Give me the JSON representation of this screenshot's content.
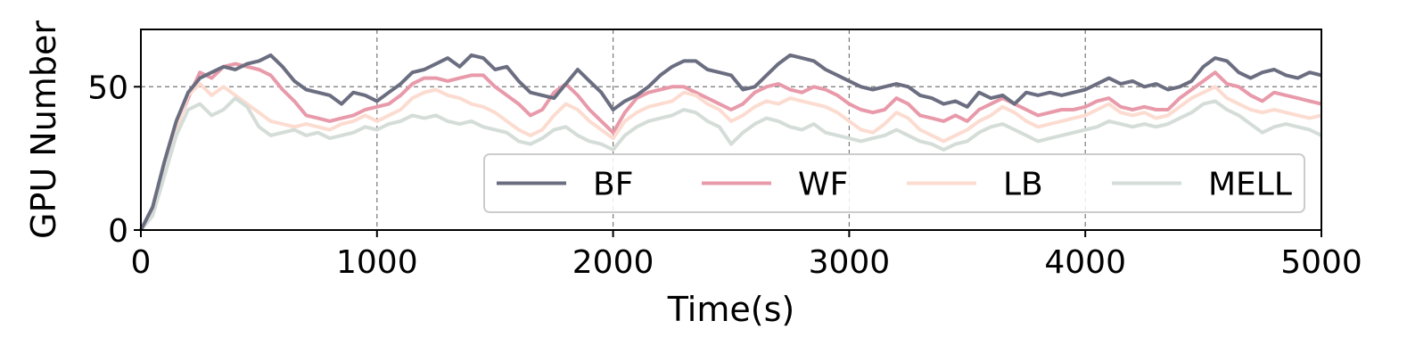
{
  "chart_data": {
    "type": "line",
    "title": "",
    "xlabel": "Time(s)",
    "ylabel": "GPU Number",
    "xlim": [
      0,
      5000
    ],
    "ylim": [
      0,
      70
    ],
    "xticks": [
      0,
      1000,
      2000,
      3000,
      4000,
      5000
    ],
    "yticks": [
      0,
      50
    ],
    "xtick_labels": [
      "0",
      "1000",
      "2000",
      "3000",
      "4000",
      "5000"
    ],
    "ytick_labels": [
      "0",
      "50"
    ],
    "grid": "dashed, both axes",
    "legend_placement": "lower-right",
    "x": [
      0,
      50,
      100,
      150,
      200,
      250,
      300,
      350,
      400,
      450,
      500,
      550,
      600,
      650,
      700,
      750,
      800,
      850,
      900,
      950,
      1000,
      1050,
      1100,
      1150,
      1200,
      1250,
      1300,
      1350,
      1400,
      1450,
      1500,
      1550,
      1600,
      1650,
      1700,
      1750,
      1800,
      1850,
      1900,
      1950,
      2000,
      2050,
      2100,
      2150,
      2200,
      2250,
      2300,
      2350,
      2400,
      2450,
      2500,
      2550,
      2600,
      2650,
      2700,
      2750,
      2800,
      2850,
      2900,
      2950,
      3000,
      3050,
      3100,
      3150,
      3200,
      3250,
      3300,
      3350,
      3400,
      3450,
      3500,
      3550,
      3600,
      3650,
      3700,
      3750,
      3800,
      3850,
      3900,
      3950,
      4000,
      4050,
      4100,
      4150,
      4200,
      4250,
      4300,
      4350,
      4400,
      4450,
      4500,
      4550,
      4600,
      4650,
      4700,
      4750,
      4800,
      4850,
      4900,
      4950,
      5000
    ],
    "series": [
      {
        "name": "BF",
        "color": "#6b6e80",
        "values": [
          0,
          8,
          24,
          38,
          48,
          53,
          55,
          57,
          56,
          58,
          59,
          61,
          57,
          52,
          49,
          48,
          47,
          44,
          48,
          47,
          45,
          48,
          51,
          55,
          56,
          58,
          60,
          57,
          61,
          60,
          56,
          57,
          52,
          48,
          47,
          46,
          51,
          56,
          52,
          48,
          42,
          45,
          47,
          50,
          54,
          57,
          59,
          59,
          56,
          55,
          54,
          49,
          50,
          54,
          58,
          61,
          60,
          59,
          56,
          54,
          52,
          50,
          49,
          50,
          51,
          50,
          47,
          46,
          44,
          45,
          43,
          48,
          46,
          47,
          44,
          48,
          47,
          48,
          47,
          48,
          49,
          51,
          53,
          51,
          52,
          50,
          51,
          49,
          50,
          52,
          57,
          60,
          59,
          55,
          53,
          55,
          56,
          54,
          53,
          55,
          54
        ]
      },
      {
        "name": "WF",
        "color": "#e89aaa",
        "values": [
          0,
          7,
          22,
          36,
          46,
          55,
          53,
          57,
          58,
          57,
          56,
          54,
          49,
          45,
          40,
          39,
          38,
          39,
          40,
          42,
          43,
          44,
          47,
          51,
          53,
          53,
          52,
          53,
          54,
          54,
          50,
          47,
          44,
          40,
          42,
          48,
          51,
          47,
          42,
          38,
          34,
          41,
          46,
          48,
          49,
          50,
          50,
          48,
          46,
          44,
          42,
          44,
          48,
          50,
          51,
          49,
          48,
          50,
          49,
          47,
          44,
          42,
          41,
          42,
          46,
          44,
          40,
          39,
          38,
          40,
          38,
          42,
          44,
          46,
          44,
          42,
          40,
          41,
          42,
          42,
          43,
          45,
          46,
          43,
          42,
          43,
          42,
          42,
          46,
          49,
          52,
          55,
          51,
          50,
          47,
          45,
          48,
          47,
          46,
          45,
          44
        ]
      },
      {
        "name": "LB",
        "color": "#fcdcd0",
        "values": [
          0,
          6,
          21,
          35,
          47,
          51,
          47,
          50,
          47,
          44,
          41,
          38,
          37,
          36,
          37,
          36,
          35,
          37,
          38,
          40,
          38,
          40,
          42,
          46,
          48,
          49,
          47,
          46,
          44,
          43,
          41,
          38,
          35,
          33,
          35,
          40,
          44,
          42,
          38,
          35,
          32,
          38,
          41,
          43,
          44,
          45,
          48,
          47,
          44,
          42,
          38,
          40,
          43,
          45,
          44,
          46,
          45,
          44,
          43,
          41,
          38,
          35,
          34,
          37,
          41,
          39,
          35,
          33,
          31,
          33,
          35,
          38,
          40,
          43,
          41,
          38,
          36,
          37,
          38,
          39,
          40,
          42,
          44,
          41,
          40,
          41,
          39,
          40,
          43,
          46,
          48,
          50,
          46,
          44,
          42,
          41,
          42,
          41,
          40,
          39,
          40
        ]
      },
      {
        "name": "MELL",
        "color": "#d5ddd8",
        "values": [
          0,
          5,
          19,
          33,
          42,
          44,
          40,
          42,
          46,
          43,
          36,
          33,
          34,
          35,
          33,
          34,
          32,
          33,
          34,
          36,
          35,
          37,
          38,
          40,
          39,
          40,
          38,
          37,
          38,
          36,
          35,
          34,
          31,
          30,
          32,
          35,
          36,
          33,
          31,
          30,
          28,
          33,
          36,
          38,
          39,
          40,
          42,
          41,
          38,
          36,
          30,
          34,
          37,
          39,
          38,
          36,
          35,
          37,
          34,
          33,
          32,
          31,
          32,
          33,
          35,
          33,
          31,
          30,
          28,
          30,
          31,
          34,
          36,
          37,
          35,
          33,
          31,
          32,
          33,
          34,
          35,
          36,
          38,
          37,
          36,
          37,
          36,
          37,
          39,
          41,
          44,
          45,
          42,
          40,
          37,
          34,
          36,
          37,
          36,
          35,
          33
        ]
      }
    ]
  }
}
